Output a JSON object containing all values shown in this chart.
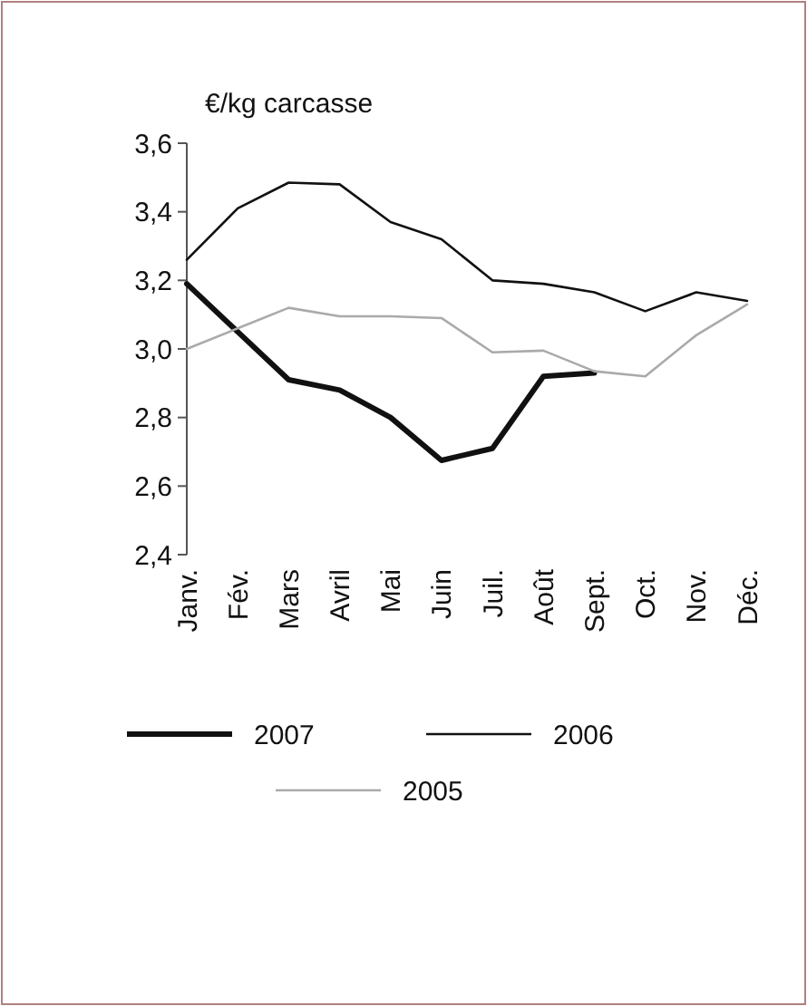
{
  "chart_data": {
    "type": "line",
    "ylabel": "€/kg carcasse",
    "categories": [
      "Janv.",
      "Fév.",
      "Mars",
      "Avril",
      "Mai",
      "Juin",
      "Juil.",
      "Août",
      "Sept.",
      "Oct.",
      "Nov.",
      "Déc."
    ],
    "series": [
      {
        "name": "2007",
        "color": "#111111",
        "values": [
          3.19,
          3.05,
          2.91,
          2.88,
          2.8,
          2.675,
          2.71,
          2.92,
          2.93,
          null,
          null,
          null
        ]
      },
      {
        "name": "2006",
        "color": "#111111",
        "values": [
          3.26,
          3.41,
          3.485,
          3.48,
          3.37,
          3.32,
          3.2,
          3.19,
          3.165,
          3.11,
          3.165,
          3.14
        ]
      },
      {
        "name": "2005",
        "color": "#aaaaaa",
        "values": [
          3.0,
          3.06,
          3.12,
          3.095,
          3.095,
          3.09,
          2.99,
          2.995,
          2.935,
          2.92,
          3.04,
          3.13
        ]
      }
    ],
    "ylim": [
      2.4,
      3.6
    ],
    "yticks": [
      {
        "value": 2.4,
        "label": "2,4"
      },
      {
        "value": 2.6,
        "label": "2,6"
      },
      {
        "value": 2.8,
        "label": "2,8"
      },
      {
        "value": 3.0,
        "label": "3,0"
      },
      {
        "value": 3.2,
        "label": "3,2"
      },
      {
        "value": 3.4,
        "label": "3,4"
      },
      {
        "value": 3.6,
        "label": "3,6"
      }
    ],
    "grid": false,
    "legend": "bottom",
    "marker": "none",
    "line_style": "solid"
  }
}
